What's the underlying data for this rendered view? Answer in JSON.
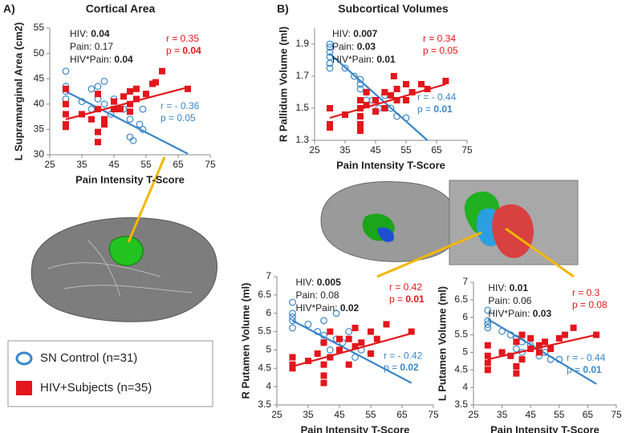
{
  "panels": [
    "A)",
    "B)"
  ],
  "chart_data": [
    {
      "type": "scatter",
      "title": "Cortical Area",
      "x_label": "Pain Intensity T-Score",
      "y_label": "L Supramarginal Area (cm2)",
      "xlim": [
        25,
        75
      ],
      "xticks": [
        25,
        35,
        45,
        55,
        65,
        75
      ],
      "ylim": [
        30,
        55
      ],
      "yticks": [
        30,
        35,
        40,
        45,
        50,
        55
      ],
      "grid": false,
      "stats": [
        {
          "label": "HIV:",
          "value": "0.04",
          "bold": true
        },
        {
          "label": "Pain:",
          "value": "0.17",
          "bold": false
        },
        {
          "label": "HIV*Pain:",
          "value": "0.04",
          "bold": true
        }
      ],
      "series": [
        {
          "name": "SN Control (n=31)",
          "color": "#3a86c8",
          "marker": "circle",
          "x": [
            30,
            30,
            30,
            30,
            35,
            38,
            38,
            40,
            40,
            42,
            42,
            44,
            45,
            48,
            50,
            50,
            51,
            53,
            54,
            54
          ],
          "y": [
            46.5,
            43.5,
            42.5,
            41,
            40.5,
            43,
            39,
            43.5,
            41,
            44.5,
            40,
            38,
            41,
            39,
            37,
            33.5,
            32.8,
            36,
            35,
            39
          ],
          "fit_x": [
            30,
            68
          ],
          "fit_y": [
            42.5,
            30.2
          ],
          "r": "r = - 0.36",
          "p_label": "p =",
          "p_value": "0.05",
          "p_bold": false
        },
        {
          "name": "HIV+Subjects (n=35)",
          "color": "#e3161c",
          "marker": "square",
          "x": [
            30,
            30,
            30,
            30,
            30,
            35,
            38,
            40,
            40,
            40,
            40,
            42,
            42,
            45,
            45,
            47,
            48,
            50,
            50,
            50,
            52,
            52,
            55,
            57,
            58,
            60,
            68
          ],
          "y": [
            40,
            38,
            36,
            35.5,
            43,
            38,
            37,
            42,
            39,
            34.5,
            32.5,
            37,
            36,
            39,
            40.5,
            39,
            41.5,
            40,
            42.5,
            38.5,
            43,
            41,
            42,
            44,
            44.3,
            46.5,
            43
          ],
          "fit_x": [
            30,
            68
          ],
          "fit_y": [
            37,
            43.3
          ],
          "r": "r = 0.35",
          "p_label": "p =",
          "p_value": "0.04",
          "p_bold": true
        }
      ]
    },
    {
      "type": "scatter",
      "title": "Subcortical Volumes",
      "x_label": "Pain Intensity T-Score",
      "y_label": "R Pallidum Volume (ml)",
      "xlim": [
        25,
        75
      ],
      "xticks": [
        25,
        35,
        45,
        55,
        65,
        75
      ],
      "ylim": [
        1.3,
        2.0
      ],
      "yticks": [
        1.3,
        1.5,
        1.7,
        1.9
      ],
      "grid": false,
      "stats": [
        {
          "label": "HIV:",
          "value": "0.007",
          "bold": true
        },
        {
          "label": "Pain:",
          "value": "0.03",
          "bold": true
        },
        {
          "label": "HIV*Pain:",
          "value": "0.01",
          "bold": true
        }
      ],
      "series": [
        {
          "color": "#3a86c8",
          "marker": "circle",
          "x": [
            30,
            30,
            30,
            30,
            30,
            30,
            35,
            38,
            40,
            40,
            40,
            42,
            42,
            44,
            46,
            48,
            50,
            52,
            55
          ],
          "y": [
            1.9,
            1.88,
            1.85,
            1.82,
            1.78,
            1.75,
            1.75,
            1.7,
            1.68,
            1.65,
            1.62,
            1.6,
            1.55,
            1.55,
            1.5,
            1.58,
            1.5,
            1.45,
            1.44
          ],
          "fit_x": [
            30,
            62
          ],
          "fit_y": [
            1.84,
            1.3
          ],
          "r": "r = - 0.44",
          "p_label": "p =",
          "p_value": "0.01",
          "p_bold": true
        },
        {
          "color": "#e3161c",
          "marker": "square",
          "x": [
            30,
            30,
            30,
            35,
            40,
            40,
            40,
            40,
            40,
            42,
            42,
            45,
            45,
            48,
            48,
            50,
            51,
            52,
            52,
            55,
            55,
            57,
            60,
            62,
            68
          ],
          "y": [
            1.5,
            1.4,
            1.38,
            1.46,
            1.55,
            1.5,
            1.45,
            1.4,
            1.36,
            1.6,
            1.52,
            1.55,
            1.48,
            1.5,
            1.6,
            1.58,
            1.7,
            1.55,
            1.62,
            1.55,
            1.65,
            1.6,
            1.65,
            1.62,
            1.67
          ],
          "fit_x": [
            30,
            68
          ],
          "fit_y": [
            1.44,
            1.65
          ],
          "r": "r = 0.34",
          "p_label": "p =",
          "p_value": "0.05",
          "p_bold": false
        }
      ]
    },
    {
      "type": "scatter",
      "x_label": "Pain Intensity T-Score",
      "y_label": "R Putamen Volume (ml)",
      "xlim": [
        25,
        75
      ],
      "xticks": [
        25,
        35,
        45,
        55,
        65,
        75
      ],
      "ylim": [
        3.5,
        7
      ],
      "yticks": [
        3.5,
        4,
        4.5,
        5,
        5.5,
        6,
        6.5,
        7
      ],
      "grid": false,
      "stats": [
        {
          "label": "HIV:",
          "value": "0.005",
          "bold": true
        },
        {
          "label": "Pain:",
          "value": "0.08",
          "bold": false
        },
        {
          "label": "HIV*Pain:",
          "value": "0.02",
          "bold": true
        }
      ],
      "series": [
        {
          "color": "#3a86c8",
          "marker": "circle",
          "x": [
            30,
            30,
            30,
            30,
            30,
            35,
            38,
            40,
            40,
            40,
            42,
            44,
            44,
            46,
            48,
            50,
            52,
            55
          ],
          "y": [
            6.3,
            6.0,
            5.9,
            5.8,
            5.6,
            5.7,
            5.5,
            5.8,
            5.4,
            5.2,
            5.0,
            5.3,
            6.0,
            5.2,
            5.5,
            4.8,
            5.0,
            4.9
          ],
          "fit_x": [
            30,
            68
          ],
          "fit_y": [
            5.8,
            4.1
          ],
          "r": "r = - 0.42",
          "p_label": "p =",
          "p_value": "0.02",
          "p_bold": true
        },
        {
          "color": "#e3161c",
          "marker": "square",
          "x": [
            30,
            30,
            30,
            35,
            38,
            40,
            40,
            40,
            40,
            42,
            42,
            45,
            45,
            48,
            48,
            50,
            50,
            52,
            55,
            55,
            57,
            60,
            68
          ],
          "y": [
            4.8,
            4.6,
            4.5,
            4.7,
            4.9,
            5.2,
            4.6,
            4.1,
            4.3,
            5.5,
            4.8,
            5.0,
            5.3,
            5.3,
            4.6,
            5.1,
            5.6,
            5.2,
            5.5,
            4.9,
            5.3,
            5.7,
            5.5
          ],
          "fit_x": [
            30,
            68
          ],
          "fit_y": [
            4.55,
            5.45
          ],
          "r": "r = 0.42",
          "p_label": "p =",
          "p_value": "0.01",
          "p_bold": true
        }
      ]
    },
    {
      "type": "scatter",
      "x_label": "Pain Intensity T-Score",
      "y_label": "L Putamen Volume (ml)",
      "xlim": [
        25,
        75
      ],
      "xticks": [
        25,
        35,
        45,
        55,
        65,
        75
      ],
      "ylim": [
        3.5,
        7
      ],
      "yticks": [
        3.5,
        4,
        4.5,
        5,
        5.5,
        6,
        6.5,
        7
      ],
      "grid": false,
      "stats": [
        {
          "label": "HIV:",
          "value": "0.01",
          "bold": true
        },
        {
          "label": "Pain:",
          "value": "0.06",
          "bold": false
        },
        {
          "label": "HIV*Pain:",
          "value": "0.03",
          "bold": true
        }
      ],
      "series": [
        {
          "color": "#3a86c8",
          "marker": "circle",
          "x": [
            30,
            30,
            30,
            30,
            35,
            38,
            40,
            40,
            42,
            42,
            45,
            48,
            50,
            52,
            55
          ],
          "y": [
            6.2,
            5.9,
            5.8,
            5.7,
            5.6,
            5.5,
            5.4,
            5.1,
            5.3,
            5.0,
            5.2,
            4.9,
            5.0,
            4.8,
            4.8
          ],
          "fit_x": [
            30,
            68
          ],
          "fit_y": [
            5.95,
            4.1
          ],
          "r": "r = - 0.44",
          "p_label": "p =",
          "p_value": "0.01",
          "p_bold": true
        },
        {
          "color": "#e3161c",
          "marker": "square",
          "x": [
            30,
            30,
            30,
            30,
            35,
            38,
            40,
            40,
            40,
            42,
            42,
            45,
            45,
            48,
            48,
            50,
            52,
            55,
            57,
            60,
            68
          ],
          "y": [
            5.2,
            4.9,
            4.7,
            4.5,
            5.0,
            4.9,
            5.3,
            4.6,
            4.4,
            5.5,
            4.8,
            5.1,
            5.4,
            5.0,
            5.2,
            5.3,
            5.1,
            5.4,
            5.5,
            5.7,
            5.5
          ],
          "fit_x": [
            30,
            68
          ],
          "fit_y": [
            4.8,
            5.5
          ],
          "r": "r = 0.3",
          "p_label": "p =",
          "p_value": "0.08",
          "p_bold": false
        }
      ]
    }
  ]
}
